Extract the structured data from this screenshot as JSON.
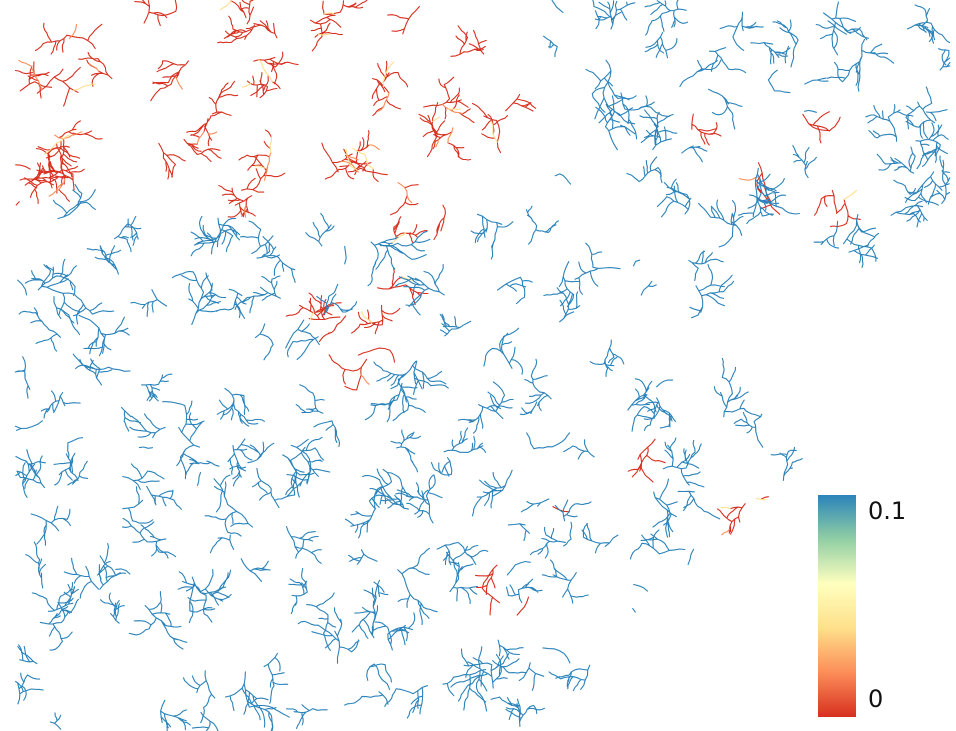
{
  "colorbar": {
    "range": [
      0,
      0.1
    ],
    "ticks": [
      0.1,
      0
    ],
    "colors": [
      "#d7301f",
      "#fc8d59",
      "#fee08b",
      "#ffffbf",
      "#91cfa4",
      "#2b83ba"
    ]
  }
}
